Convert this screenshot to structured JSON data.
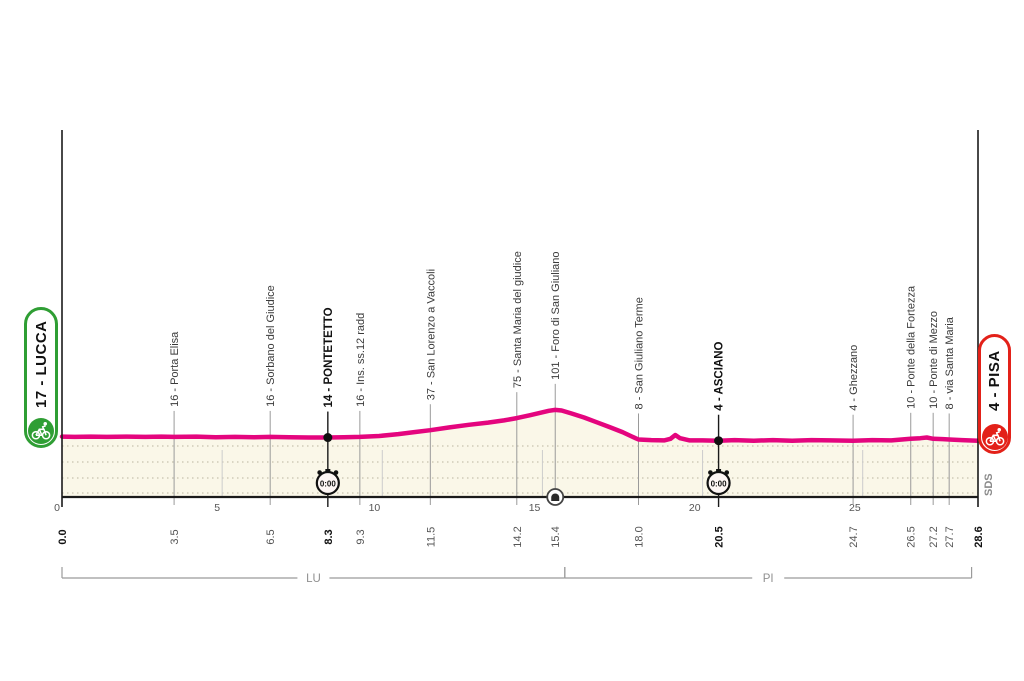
{
  "colors": {
    "giro_pink": "#e4057e",
    "area_fill": "#faf7e8",
    "dotted_grid": "#c6c2ad",
    "start_green": "#2f9e34",
    "finish_red": "#e32119",
    "axis_black": "#1a1a1a",
    "tick_gray": "#999999"
  },
  "stage": {
    "start_badge": {
      "label": "17 - LUCCA",
      "icon": "cyclist"
    },
    "finish_badge": {
      "label": "4 - PISA",
      "icon": "cyclist"
    },
    "timecheck_value": "0:00",
    "logo": "SDS"
  },
  "chart_data": {
    "type": "area",
    "x_unit": "km",
    "x_range": [
      0,
      28.6
    ],
    "axis_km_ticks": [
      0,
      5,
      10,
      15,
      20,
      25
    ],
    "grid": "dotted-horizontal",
    "legend": "none",
    "landmarks": [
      {
        "km": 0.0,
        "km_label": "0.0",
        "elev": 17,
        "label": "",
        "bold": true,
        "role": "start"
      },
      {
        "km": 3.5,
        "km_label": "3.5",
        "elev": 16,
        "label": "16 - Porta Elisa"
      },
      {
        "km": 6.5,
        "km_label": "6.5",
        "elev": 16,
        "label": "16 - Sorbano del Giudice"
      },
      {
        "km": 8.3,
        "km_label": "8.3",
        "elev": 14,
        "label": "14 - PONTETETTO",
        "bold": true,
        "timecheck": true
      },
      {
        "km": 9.3,
        "km_label": "9.3",
        "elev": 16,
        "label": "16 - Ins. ss.12 radd"
      },
      {
        "km": 11.5,
        "km_label": "11.5",
        "elev": 37,
        "label": "37 - San Lorenzo a Vaccoli"
      },
      {
        "km": 14.2,
        "km_label": "14.2",
        "elev": 75,
        "label": "75 - Santa Maria del giudice"
      },
      {
        "km": 15.4,
        "km_label": "15.4",
        "elev": 101,
        "label": "101 - Foro di San Giuliano",
        "tunnel": true
      },
      {
        "km": 18.0,
        "km_label": "18.0",
        "elev": 8,
        "label": "8 - San Giuliano Terme"
      },
      {
        "km": 20.5,
        "km_label": "20.5",
        "elev": 4,
        "label": "4 - ASCIANO",
        "bold": true,
        "timecheck": true
      },
      {
        "km": 24.7,
        "km_label": "24.7",
        "elev": 4,
        "label": "4 - Ghezzano"
      },
      {
        "km": 26.5,
        "km_label": "26.5",
        "elev": 10,
        "label": "10 - Ponte della Fortezza"
      },
      {
        "km": 27.2,
        "km_label": "27.2",
        "elev": 10,
        "label": "10 - Ponte di Mezzo"
      },
      {
        "km": 27.7,
        "km_label": "27.7",
        "elev": 8,
        "label": "8 - via Santa Maria"
      },
      {
        "km": 28.6,
        "km_label": "28.6",
        "elev": 4,
        "label": "",
        "bold": true,
        "role": "finish"
      }
    ],
    "profile_km_elev": [
      [
        0,
        17
      ],
      [
        0.4,
        16
      ],
      [
        0.9,
        17
      ],
      [
        1.4,
        16
      ],
      [
        2.0,
        17
      ],
      [
        2.6,
        16
      ],
      [
        3.1,
        17
      ],
      [
        3.5,
        16
      ],
      [
        4.2,
        17
      ],
      [
        4.8,
        15
      ],
      [
        5.4,
        16
      ],
      [
        6.0,
        15
      ],
      [
        6.5,
        16
      ],
      [
        7.1,
        15
      ],
      [
        7.7,
        14
      ],
      [
        8.3,
        14
      ],
      [
        8.8,
        15
      ],
      [
        9.3,
        16
      ],
      [
        9.9,
        19
      ],
      [
        10.5,
        25
      ],
      [
        11.0,
        31
      ],
      [
        11.5,
        37
      ],
      [
        12.1,
        46
      ],
      [
        12.7,
        54
      ],
      [
        13.3,
        61
      ],
      [
        13.8,
        68
      ],
      [
        14.2,
        75
      ],
      [
        14.6,
        84
      ],
      [
        14.9,
        91
      ],
      [
        15.2,
        98
      ],
      [
        15.4,
        101
      ],
      [
        15.6,
        99
      ],
      [
        15.9,
        90
      ],
      [
        16.3,
        77
      ],
      [
        16.7,
        62
      ],
      [
        17.1,
        47
      ],
      [
        17.5,
        31
      ],
      [
        17.8,
        17
      ],
      [
        18.0,
        8
      ],
      [
        18.4,
        6
      ],
      [
        18.8,
        5
      ],
      [
        19.0,
        10
      ],
      [
        19.15,
        22
      ],
      [
        19.3,
        12
      ],
      [
        19.6,
        5
      ],
      [
        20.0,
        5
      ],
      [
        20.5,
        4
      ],
      [
        21.0,
        6
      ],
      [
        21.6,
        4
      ],
      [
        22.2,
        6
      ],
      [
        22.8,
        4
      ],
      [
        23.4,
        6
      ],
      [
        24.0,
        5
      ],
      [
        24.7,
        4
      ],
      [
        25.3,
        6
      ],
      [
        25.9,
        5
      ],
      [
        26.5,
        10
      ],
      [
        26.8,
        12
      ],
      [
        27.0,
        14
      ],
      [
        27.2,
        10
      ],
      [
        27.5,
        9
      ],
      [
        27.7,
        8
      ],
      [
        28.1,
        6
      ],
      [
        28.6,
        4
      ]
    ],
    "province_brackets": [
      {
        "label": "LU",
        "from_km": 0,
        "to_km": 15.7
      },
      {
        "label": "PI",
        "from_km": 15.7,
        "to_km": 28.4
      }
    ]
  }
}
